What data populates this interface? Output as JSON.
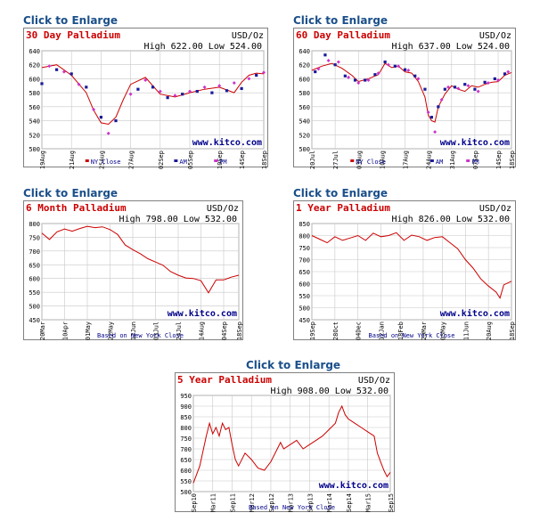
{
  "colors": {
    "title": "#cc0000",
    "line": "#cc0000",
    "am": "#1a1a9a",
    "pm": "#cc33cc",
    "watermark": "#00008b",
    "grid": "#c8c8c8",
    "link": "#1a4f8a",
    "legend_text": "#00008b"
  },
  "watermark": "www.kitco.com",
  "chart_data": [
    {
      "id": "p30",
      "type": "line",
      "link_label": "Click to Enlarge",
      "title": "30 Day Palladium",
      "unit": "USD/Oz",
      "high_low": "High 622.00  Low 524.00",
      "ylim": [
        500,
        640
      ],
      "yticks": [
        500,
        520,
        540,
        560,
        580,
        600,
        620,
        640
      ],
      "xlim": [
        0,
        30
      ],
      "xticks": [
        {
          "x": 0,
          "label": "19Aug"
        },
        {
          "x": 4,
          "label": "21Aug"
        },
        {
          "x": 8,
          "label": "25Aug"
        },
        {
          "x": 12,
          "label": "27Aug"
        },
        {
          "x": 16,
          "label": "02Sep"
        },
        {
          "x": 20,
          "label": "05Sep"
        },
        {
          "x": 24,
          "label": "10Sep"
        },
        {
          "x": 27,
          "label": "14Sep"
        },
        {
          "x": 30,
          "label": "18Sep"
        }
      ],
      "legend": [
        "NY Close",
        "AM",
        "PM"
      ],
      "footer": "",
      "series": [
        {
          "name": "NY Close",
          "style": "line",
          "x": [
            0,
            2,
            4,
            6,
            7,
            8,
            9,
            10,
            11,
            12,
            14,
            16,
            18,
            20,
            22,
            24,
            26,
            27,
            28,
            29,
            30
          ],
          "values": [
            616,
            620,
            605,
            580,
            555,
            537,
            535,
            545,
            570,
            592,
            602,
            578,
            574,
            580,
            585,
            588,
            580,
            595,
            605,
            608,
            607
          ]
        },
        {
          "name": "AM",
          "style": "square",
          "x": [
            0,
            2,
            4,
            6,
            8,
            10,
            13,
            15,
            17,
            19,
            21,
            23,
            25,
            27,
            29
          ],
          "values": [
            593,
            613,
            607,
            588,
            545,
            540,
            585,
            588,
            573,
            578,
            582,
            580,
            583,
            586,
            605
          ]
        },
        {
          "name": "PM",
          "style": "diamond",
          "x": [
            1,
            3,
            5,
            7,
            9,
            12,
            14,
            16,
            18,
            20,
            22,
            24,
            26,
            28,
            30
          ],
          "values": [
            618,
            610,
            592,
            556,
            522,
            578,
            598,
            582,
            576,
            582,
            588,
            590,
            594,
            600,
            609
          ]
        }
      ]
    },
    {
      "id": "p60",
      "type": "line",
      "link_label": "Click to Enlarge",
      "title": "60 Day Palladium",
      "unit": "USD/Oz",
      "high_low": "High 637.00  Low 524.00",
      "ylim": [
        500,
        640
      ],
      "yticks": [
        500,
        520,
        540,
        560,
        580,
        600,
        620,
        640
      ],
      "xlim": [
        0,
        60
      ],
      "xticks": [
        {
          "x": 0,
          "label": "20Jul"
        },
        {
          "x": 7,
          "label": "27Jul"
        },
        {
          "x": 14,
          "label": "03Aug"
        },
        {
          "x": 21,
          "label": "10Aug"
        },
        {
          "x": 28,
          "label": "17Aug"
        },
        {
          "x": 35,
          "label": "24Aug"
        },
        {
          "x": 42,
          "label": "31Aug"
        },
        {
          "x": 49,
          "label": "07Sep"
        },
        {
          "x": 56,
          "label": "14Sep"
        },
        {
          "x": 60,
          "label": "18Sep"
        }
      ],
      "legend": [
        "NY Close",
        "AM",
        "PM"
      ],
      "footer": "",
      "series": [
        {
          "name": "NY Close",
          "style": "line",
          "x": [
            0,
            3,
            6,
            9,
            12,
            14,
            17,
            20,
            22,
            24,
            26,
            28,
            30,
            32,
            34,
            35,
            36,
            37,
            38,
            40,
            42,
            44,
            46,
            48,
            50,
            52,
            54,
            56,
            58,
            60
          ],
          "values": [
            612,
            618,
            622,
            615,
            605,
            596,
            600,
            606,
            622,
            616,
            618,
            610,
            608,
            596,
            574,
            548,
            540,
            538,
            560,
            578,
            590,
            585,
            582,
            590,
            588,
            592,
            595,
            596,
            605,
            609
          ]
        },
        {
          "name": "AM",
          "style": "square",
          "x": [
            1,
            4,
            7,
            10,
            13,
            16,
            19,
            22,
            25,
            28,
            31,
            34,
            36,
            38,
            40,
            43,
            46,
            49,
            52,
            55,
            58
          ],
          "values": [
            610,
            634,
            620,
            604,
            598,
            598,
            606,
            624,
            618,
            613,
            604,
            585,
            545,
            560,
            585,
            588,
            592,
            585,
            595,
            600,
            607
          ]
        },
        {
          "name": "PM",
          "style": "diamond",
          "x": [
            2,
            5,
            8,
            11,
            14,
            17,
            20,
            23,
            26,
            29,
            32,
            35,
            37,
            39,
            41,
            44,
            47,
            50,
            53,
            56,
            59
          ],
          "values": [
            614,
            626,
            624,
            602,
            594,
            598,
            608,
            620,
            618,
            612,
            600,
            552,
            524,
            570,
            588,
            586,
            590,
            582,
            594,
            598,
            610
          ]
        }
      ]
    },
    {
      "id": "p6m",
      "type": "line",
      "link_label": "Click to Enlarge",
      "title": "6 Month Palladium",
      "unit": "USD/Oz",
      "high_low": "High 798.00  Low 532.00",
      "ylim": [
        450,
        800
      ],
      "yticks": [
        450,
        500,
        550,
        600,
        650,
        700,
        750,
        800
      ],
      "xlim": [
        0,
        26
      ],
      "xticks": [
        {
          "x": 0,
          "label": "20Mar"
        },
        {
          "x": 3,
          "label": "10Apr"
        },
        {
          "x": 6,
          "label": "01May"
        },
        {
          "x": 9,
          "label": "22May"
        },
        {
          "x": 12,
          "label": "12Jun"
        },
        {
          "x": 15,
          "label": "03Jul"
        },
        {
          "x": 18,
          "label": "24Jul"
        },
        {
          "x": 21,
          "label": "14Aug"
        },
        {
          "x": 24,
          "label": "04Sep"
        },
        {
          "x": 26,
          "label": "18Sep"
        }
      ],
      "legend": [],
      "footer": "Based on New York Close",
      "series": [
        {
          "name": "NY Close",
          "style": "line",
          "x": [
            0,
            1,
            2,
            3,
            4,
            5,
            6,
            7,
            8,
            9,
            10,
            11,
            12,
            13,
            14,
            15,
            16,
            17,
            18,
            19,
            20,
            21,
            22,
            23,
            24,
            25,
            26
          ],
          "values": [
            765,
            742,
            770,
            780,
            772,
            782,
            790,
            785,
            788,
            778,
            760,
            722,
            705,
            690,
            672,
            660,
            648,
            625,
            612,
            602,
            600,
            592,
            548,
            595,
            595,
            605,
            612
          ]
        }
      ]
    },
    {
      "id": "p1y",
      "type": "line",
      "link_label": "Click to Enlarge",
      "title": "1 Year Palladium",
      "unit": "USD/Oz",
      "high_low": "High 826.00  Low 532.00",
      "ylim": [
        450,
        850
      ],
      "yticks": [
        450,
        500,
        550,
        600,
        650,
        700,
        750,
        800,
        850
      ],
      "xlim": [
        0,
        52
      ],
      "xticks": [
        {
          "x": 0,
          "label": "19Sep"
        },
        {
          "x": 6,
          "label": "28Oct"
        },
        {
          "x": 12,
          "label": "04Dec"
        },
        {
          "x": 18,
          "label": "12Jan"
        },
        {
          "x": 23,
          "label": "18Feb"
        },
        {
          "x": 29,
          "label": "29Mar"
        },
        {
          "x": 34,
          "label": "05May"
        },
        {
          "x": 40,
          "label": "11Jun"
        },
        {
          "x": 46,
          "label": "20Aug"
        },
        {
          "x": 52,
          "label": "18Sep"
        }
      ],
      "legend": [],
      "footer": "Based on New York Close",
      "series": [
        {
          "name": "NY Close",
          "style": "line",
          "x": [
            0,
            2,
            4,
            6,
            8,
            10,
            12,
            14,
            16,
            18,
            20,
            22,
            24,
            26,
            28,
            30,
            32,
            34,
            36,
            38,
            40,
            42,
            44,
            46,
            48,
            49,
            50,
            52
          ],
          "values": [
            800,
            785,
            770,
            795,
            780,
            790,
            800,
            780,
            810,
            795,
            800,
            812,
            780,
            802,
            795,
            780,
            792,
            795,
            770,
            745,
            700,
            665,
            620,
            590,
            565,
            540,
            595,
            610
          ]
        }
      ]
    },
    {
      "id": "p5y",
      "type": "line",
      "link_label": "Click to Enlarge",
      "title": "5 Year Palladium",
      "unit": "USD/Oz",
      "high_low": "High 908.00  Low 532.00",
      "ylim": [
        500,
        950
      ],
      "yticks": [
        500,
        550,
        600,
        650,
        700,
        750,
        800,
        850,
        900,
        950
      ],
      "xlim": [
        0,
        61
      ],
      "xticks": [
        {
          "x": 0,
          "label": "Sep10"
        },
        {
          "x": 6,
          "label": "Mar11"
        },
        {
          "x": 12,
          "label": "Sep11"
        },
        {
          "x": 18,
          "label": "Mar12"
        },
        {
          "x": 24,
          "label": "Sep12"
        },
        {
          "x": 30,
          "label": "Mar13"
        },
        {
          "x": 36,
          "label": "Sep13"
        },
        {
          "x": 42,
          "label": "Mar14"
        },
        {
          "x": 48,
          "label": "Sep14"
        },
        {
          "x": 54,
          "label": "Mar15"
        },
        {
          "x": 61,
          "label": "Sep15"
        }
      ],
      "legend": [],
      "footer": "Based on New York Close",
      "series": [
        {
          "name": "NY Close",
          "style": "line",
          "x": [
            0,
            2,
            4,
            5,
            6,
            7,
            8,
            9,
            10,
            11,
            12,
            13,
            14,
            16,
            18,
            20,
            22,
            24,
            26,
            27,
            28,
            30,
            32,
            34,
            36,
            38,
            40,
            42,
            44,
            45,
            46,
            47,
            48,
            50,
            52,
            54,
            56,
            57,
            58,
            59,
            60,
            61
          ],
          "values": [
            540,
            620,
            760,
            820,
            770,
            800,
            760,
            820,
            790,
            800,
            720,
            650,
            620,
            680,
            650,
            610,
            600,
            640,
            700,
            730,
            700,
            720,
            740,
            700,
            720,
            740,
            760,
            790,
            820,
            870,
            900,
            860,
            840,
            820,
            800,
            780,
            760,
            680,
            640,
            600,
            570,
            590
          ]
        }
      ]
    }
  ]
}
